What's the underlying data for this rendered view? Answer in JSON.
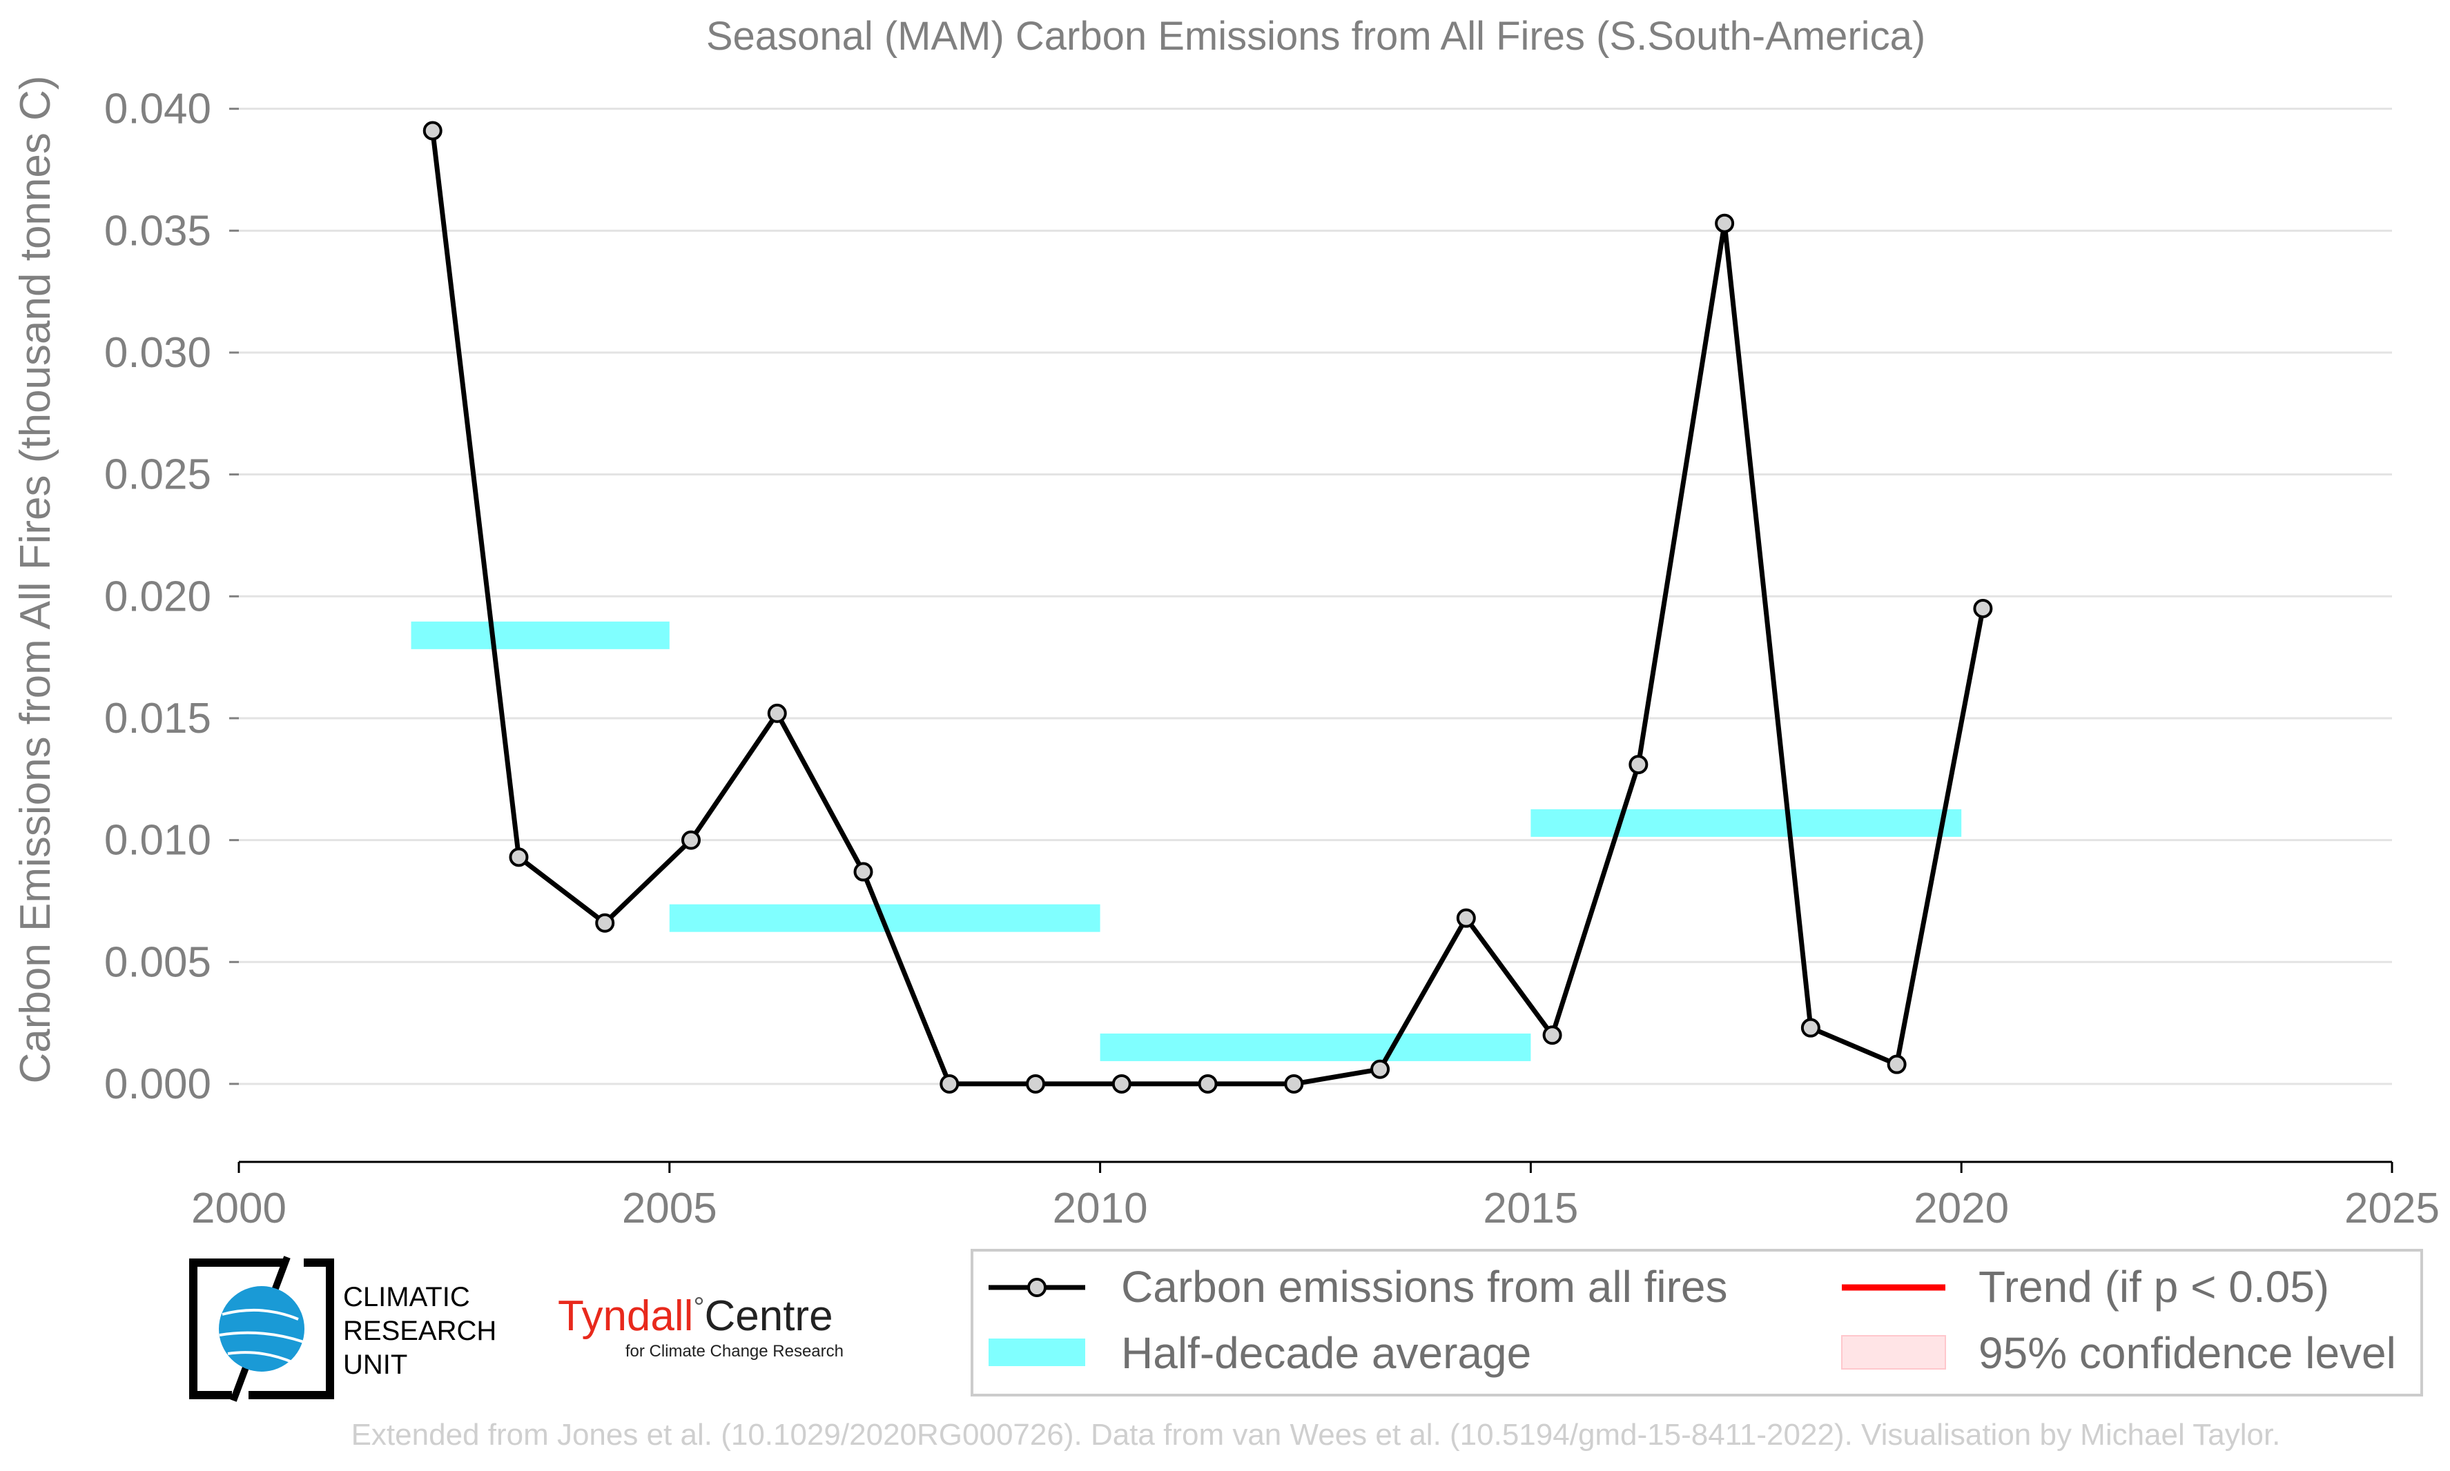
{
  "chart_data": {
    "type": "line",
    "title": "Seasonal (MAM) Carbon Emissions from All Fires (S.South-America)",
    "ylabel": "Carbon Emissions from All Fires (thousand tonnes C)",
    "xlabel": "",
    "xlim": [
      2000,
      2025
    ],
    "ylim": [
      -0.0032,
      0.0405
    ],
    "x_ticks": [
      "2000",
      "2005",
      "2010",
      "2015",
      "2020",
      "2025"
    ],
    "y_ticks": [
      "0.000",
      "0.005",
      "0.010",
      "0.015",
      "0.020",
      "0.025",
      "0.030",
      "0.035",
      "0.040"
    ],
    "grid": "horizontal",
    "legend_placement": "bottom-right",
    "series": [
      {
        "name": "Carbon emissions from all fires",
        "color": "#000000",
        "marker_color": "#d3d3d3",
        "x": [
          2002.25,
          2003.25,
          2004.25,
          2005.25,
          2006.25,
          2007.25,
          2008.25,
          2009.25,
          2010.25,
          2011.25,
          2012.25,
          2013.25,
          2014.25,
          2015.25,
          2016.25,
          2017.25,
          2018.25,
          2019.25,
          2020.25
        ],
        "values": [
          0.0391,
          0.0093,
          0.0066,
          0.01,
          0.0152,
          0.0087,
          0.0,
          0.0,
          0.0,
          0.0,
          0.0,
          0.0006,
          0.0068,
          0.002,
          0.0131,
          0.0353,
          0.0023,
          0.0008,
          0.0195
        ]
      }
    ],
    "half_decade_averages": {
      "name": "Half-decade average",
      "color": "#80ffff",
      "segments": [
        {
          "x0": 2002,
          "x1": 2005,
          "value": 0.0184
        },
        {
          "x0": 2005,
          "x1": 2010,
          "value": 0.0068
        },
        {
          "x0": 2010,
          "x1": 2015,
          "value": 0.0015
        },
        {
          "x0": 2015,
          "x1": 2020,
          "value": 0.0107
        }
      ]
    },
    "legend": [
      {
        "label": "Carbon emissions from all fires",
        "kind": "line-marker",
        "color": "#000000"
      },
      {
        "label": "Trend (if p < 0.05)",
        "kind": "line",
        "color": "#ff0000"
      },
      {
        "label": "Half-decade average",
        "kind": "band",
        "color": "#80ffff"
      },
      {
        "label": "95% confidence level",
        "kind": "patch",
        "color": "#ffe4e6"
      }
    ]
  },
  "logos": {
    "cru_text": [
      "CLIMATIC",
      "RESEARCH",
      "UNIT"
    ],
    "tyndall_main": "Tyndall",
    "tyndall_degree": "°",
    "tyndall_centre": "Centre",
    "tyndall_sub": "for Climate Change Research"
  },
  "footer": "Extended from Jones et al. (10.1029/2020RG000726). Data from van Wees et al. (10.5194/gmd-15-8411-2022). Visualisation by Michael Taylor."
}
